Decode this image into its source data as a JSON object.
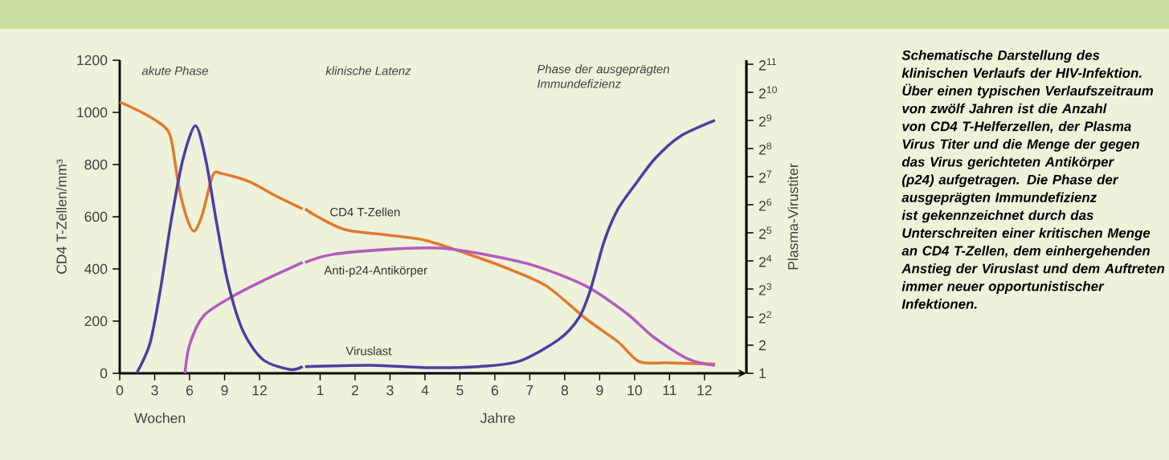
{
  "chart_data": [
    {
      "type": "line",
      "ylabel": "CD4 T-Zellen/mm³",
      "xlabel": "Wochen",
      "annotations": [
        "akute Phase"
      ],
      "xlim": [
        0,
        15.7
      ],
      "ylim": [
        0,
        1200
      ],
      "y2lim": [
        1,
        2260
      ],
      "log": "y2",
      "xticks": [
        0,
        3,
        6,
        9,
        12
      ],
      "yticks": [
        0,
        200,
        400,
        600,
        800,
        1000,
        1200
      ],
      "marker": "none",
      "line_style": "solid",
      "series": [
        {
          "color": "#e07a2e",
          "x": [
            0,
            1.9,
            3.7,
            4.4,
            5.1,
            5.8,
            6.4,
            7.1,
            8.0,
            8.8,
            11.1,
            13.4,
            15.7
          ],
          "values": [
            1040,
            1000,
            950,
            900,
            710,
            590,
            545,
            610,
            760,
            765,
            735,
            680,
            630
          ]
        },
        {
          "color": "#b45cbe",
          "x": [
            5.6,
            6.0,
            7.2,
            9.5,
            12.3,
            15.7
          ],
          "values": [
            0,
            110,
            220,
            290,
            355,
            425
          ]
        },
        {
          "color": "#4b3fa3",
          "axis": "y2",
          "x": [
            1.45,
            2.6,
            3.5,
            4.4,
            5.4,
            6.5,
            7.4,
            8.3,
            9.3,
            10.6,
            12.3,
            14.6,
            15.7
          ],
          "values": [
            1,
            2.1,
            8,
            42,
            190,
            450,
            190,
            42,
            9.2,
            2.8,
            1.4,
            1.1,
            1.18
          ]
        }
      ]
    },
    {
      "type": "line",
      "y2label": "Plasma-Virustiter",
      "xlabel": "Jahre",
      "annotations": [
        "klinische Latenz",
        "Phase der ausgeprägten Immundefizienz",
        "Schematische Darstellung des klinischen Verlaufs der HIV-Infektion. Über einen typischen Verlaufszeitraum von zwölf Jahren ist die Anzahl von CD4 T-Helferzellen, der Plasma Virus Titer und die Menge der gegen das Virus gerichteten Antikörper (p24) aufgetragen. Die Phase der ausgeprägten Immundefizienz ist gekennzeichnet durch das Unterschreiten einer kritischen Menge an CD4 T-Zellen, dem einhergehenden Anstieg der Viruslast und dem Auftreten immer neuer opportunistischer Infektionen."
      ],
      "xlim": [
        0.5,
        13.2
      ],
      "ylim": [
        0,
        1200
      ],
      "y2lim": [
        1,
        2260
      ],
      "log": "y2",
      "xticks": [
        1,
        2,
        3,
        4,
        5,
        6,
        7,
        8,
        9,
        10,
        11,
        12
      ],
      "y2ticks": [
        1,
        2,
        {
          "value": 4,
          "label": "2$^{2}$"
        },
        {
          "value": 8,
          "label": "2$^{3}$"
        },
        {
          "value": 16,
          "label": "2$^{4}$"
        },
        {
          "value": 32,
          "label": "2$^{5}$"
        },
        {
          "value": 64,
          "label": "2$^{6}$"
        },
        {
          "value": 128,
          "label": "2$^{7}$"
        },
        {
          "value": 256,
          "label": "2$^{8}$"
        },
        {
          "value": 512,
          "label": "2$^{9}$"
        },
        {
          "value": 1024,
          "label": "2$^{10}$"
        },
        {
          "value": 2048,
          "label": "2$^{11}$"
        }
      ],
      "marker": "none",
      "line_style": "solid",
      "series": [
        {
          "name": "CD4 T-Zellen",
          "color": "#e07a2e",
          "x": [
            0.57,
            0.93,
            1.73,
            2.93,
            4,
            5.17,
            6.3,
            7.47,
            8.6,
            9.53,
            10.13,
            10.9,
            12.3
          ],
          "values": [
            630,
            600,
            550,
            530,
            510,
            460,
            405,
            335,
            210,
            120,
            45,
            40,
            35
          ]
        },
        {
          "name": "Anti-p24-Antikörper",
          "color": "#b45cbe",
          "x": [
            0.57,
            1.33,
            2.93,
            4.4,
            5.53,
            7.07,
            8.6,
            9.77,
            10.53,
            11.53,
            12.3
          ],
          "values": [
            425,
            455,
            475,
            480,
            460,
            415,
            335,
            230,
            140,
            55,
            30
          ]
        },
        {
          "name": "Viruslast",
          "color": "#4b3fa3",
          "axis": "y2",
          "x": [
            0.57,
            2.47,
            4,
            5.53,
            6.7,
            7.83,
            8.4,
            8.73,
            9.13,
            9.53,
            10.07,
            10.6,
            11.3,
            12.3
          ],
          "values": [
            1.18,
            1.22,
            1.15,
            1.18,
            1.35,
            2.3,
            3.9,
            7.7,
            26,
            58,
            112,
            203,
            345,
            512
          ]
        }
      ]
    }
  ]
}
